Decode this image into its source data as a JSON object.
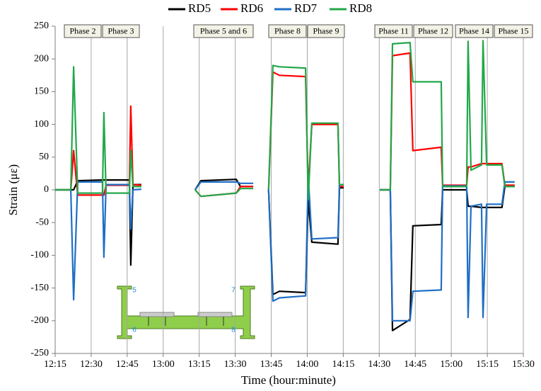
{
  "chart_data": {
    "type": "line",
    "xlabel": "Time (hour:minute)",
    "ylabel": "Strain (με)",
    "legend": "top",
    "grid": "x",
    "xlim": [
      735,
      930
    ],
    "xticks": [
      {
        "value": 735,
        "label": "12:15"
      },
      {
        "value": 750,
        "label": "12:30"
      },
      {
        "value": 765,
        "label": "12:45"
      },
      {
        "value": 780,
        "label": "13:00"
      },
      {
        "value": 795,
        "label": "13:15"
      },
      {
        "value": 810,
        "label": "13:30"
      },
      {
        "value": 825,
        "label": "13:45"
      },
      {
        "value": 840,
        "label": "14:00"
      },
      {
        "value": 855,
        "label": "14:15"
      },
      {
        "value": 870,
        "label": "14:30"
      },
      {
        "value": 885,
        "label": "14:45"
      },
      {
        "value": 900,
        "label": "15:00"
      },
      {
        "value": 915,
        "label": "15:15"
      },
      {
        "value": 930,
        "label": "15:30"
      }
    ],
    "ylim": [
      -250,
      250
    ],
    "yticks": [
      -250,
      -200,
      -150,
      -100,
      -50,
      0,
      50,
      100,
      150,
      200,
      250
    ],
    "annotations": [
      "Phase 2",
      "Phase 3",
      "Phase 5 and 6",
      "Phase 8",
      "Phase 9",
      "Phase 11",
      "Phase 12",
      "Phase 14",
      "Phase 15"
    ],
    "inset_labels": [
      "5",
      "7",
      "6",
      "8"
    ],
    "x": [
      735,
      741.5,
      742.7,
      744.4,
      754.7,
      755.3,
      756.2,
      765.9,
      766.5,
      767.4,
      770.9,
      790,
      793.3,
      795.7,
      810.4,
      812.2,
      817.5,
      820,
      823.9,
      825.7,
      828.4,
      839.3,
      840.4,
      841.9,
      852.8,
      853.4,
      855.2,
      860,
      870.2,
      874.6,
      875.5,
      882.8,
      884.0,
      895.8,
      896.4,
      906.4,
      907.0,
      908.2,
      912.6,
      913.2,
      914.7,
      921.1,
      922.3,
      926.4
    ],
    "series": [
      {
        "name": "RD5",
        "color": "#000000",
        "values": [
          0,
          0,
          0,
          14,
          15,
          15,
          15,
          15,
          -115,
          8,
          8,
          null,
          0,
          14,
          16,
          5,
          5,
          null,
          0,
          -160,
          -155,
          -157,
          -15,
          -80,
          -83,
          3,
          3,
          null,
          0,
          0,
          -215,
          -198,
          -55,
          -53,
          0,
          0,
          -25,
          -25,
          -27,
          -27,
          -27,
          -27,
          5,
          5
        ]
      },
      {
        "name": "RD6",
        "color": "#ff0000",
        "values": [
          0,
          0,
          60,
          -8,
          -8,
          -8,
          7,
          7,
          128,
          8,
          7,
          null,
          0,
          -10,
          -5,
          5,
          5,
          null,
          0,
          180,
          175,
          173,
          0,
          100,
          100,
          5,
          5,
          null,
          0,
          0,
          205,
          209,
          60,
          65,
          7,
          7,
          35,
          35,
          40,
          40,
          40,
          40,
          7,
          7
        ]
      },
      {
        "name": "RD7",
        "color": "#1f6fc5",
        "values": [
          0,
          0,
          -168,
          12,
          12,
          -103,
          8,
          8,
          -60,
          0,
          1,
          null,
          0,
          12,
          12,
          10,
          10,
          null,
          0,
          -170,
          -165,
          -162,
          22,
          -75,
          -73,
          8,
          8,
          null,
          0,
          0,
          -200,
          -200,
          -155,
          -153,
          6,
          6,
          -195,
          -25,
          -22,
          -195,
          -22,
          -22,
          12,
          12
        ]
      },
      {
        "name": "RD8",
        "color": "#22a84a",
        "values": [
          0,
          0,
          188,
          -5,
          -5,
          118,
          -5,
          -5,
          60,
          5,
          5,
          null,
          0,
          -10,
          -5,
          2,
          2,
          null,
          0,
          190,
          188,
          186,
          -15,
          102,
          102,
          8,
          8,
          null,
          0,
          0,
          223,
          225,
          165,
          165,
          5,
          5,
          227,
          30,
          38,
          228,
          38,
          38,
          5,
          5
        ]
      }
    ]
  }
}
